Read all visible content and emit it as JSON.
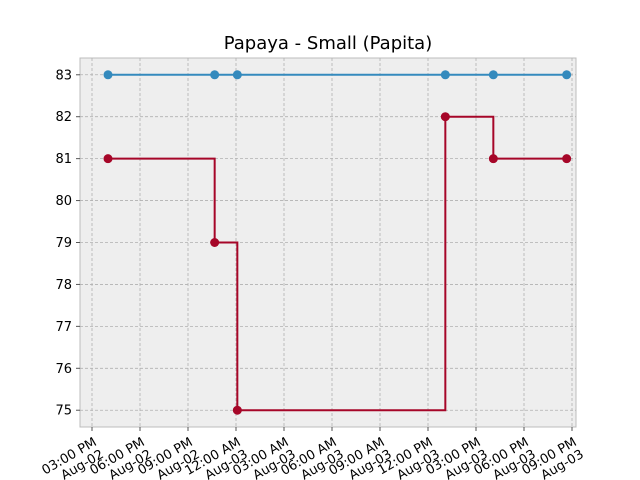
{
  "chart_data": {
    "type": "line",
    "step": "post",
    "title": "Papaya - Small (Papita)",
    "xlabel": "",
    "ylabel": "",
    "x_domain": [
      "2024-08-02T14:15",
      "2024-08-03T21:15"
    ],
    "ylim": [
      74.6,
      83.4
    ],
    "y_ticks": [
      75,
      76,
      77,
      78,
      79,
      80,
      81,
      82,
      83
    ],
    "x_ticks": [
      {
        "t": "2024-08-02T15:00",
        "label": "03:00 PM\nAug-02"
      },
      {
        "t": "2024-08-02T18:00",
        "label": "06:00 PM\nAug-02"
      },
      {
        "t": "2024-08-02T21:00",
        "label": "09:00 PM\nAug-02"
      },
      {
        "t": "2024-08-03T00:00",
        "label": "12:00 AM\nAug-03"
      },
      {
        "t": "2024-08-03T03:00",
        "label": "03:00 AM\nAug-03"
      },
      {
        "t": "2024-08-03T06:00",
        "label": "06:00 AM\nAug-03"
      },
      {
        "t": "2024-08-03T09:00",
        "label": "09:00 AM\nAug-03"
      },
      {
        "t": "2024-08-03T12:00",
        "label": "12:00 PM\nAug-03"
      },
      {
        "t": "2024-08-03T15:00",
        "label": "03:00 PM\nAug-03"
      },
      {
        "t": "2024-08-03T18:00",
        "label": "06:00 PM\nAug-03"
      },
      {
        "t": "2024-08-03T21:00",
        "label": "09:00 PM\nAug-03"
      }
    ],
    "grid": true,
    "series": [
      {
        "color": "#348abd",
        "points": [
          {
            "x": "2024-08-02T16:00",
            "y": 83
          },
          {
            "x": "2024-08-02T22:40",
            "y": 83
          },
          {
            "x": "2024-08-03T00:05",
            "y": 83
          },
          {
            "x": "2024-08-03T13:05",
            "y": 83
          },
          {
            "x": "2024-08-03T16:05",
            "y": 83
          },
          {
            "x": "2024-08-03T20:40",
            "y": 83
          }
        ]
      },
      {
        "color": "#a60628",
        "points": [
          {
            "x": "2024-08-02T16:00",
            "y": 81
          },
          {
            "x": "2024-08-02T22:40",
            "y": 79
          },
          {
            "x": "2024-08-03T00:05",
            "y": 75
          },
          {
            "x": "2024-08-03T13:05",
            "y": 82
          },
          {
            "x": "2024-08-03T16:05",
            "y": 81
          },
          {
            "x": "2024-08-03T20:40",
            "y": 81
          }
        ]
      }
    ]
  }
}
